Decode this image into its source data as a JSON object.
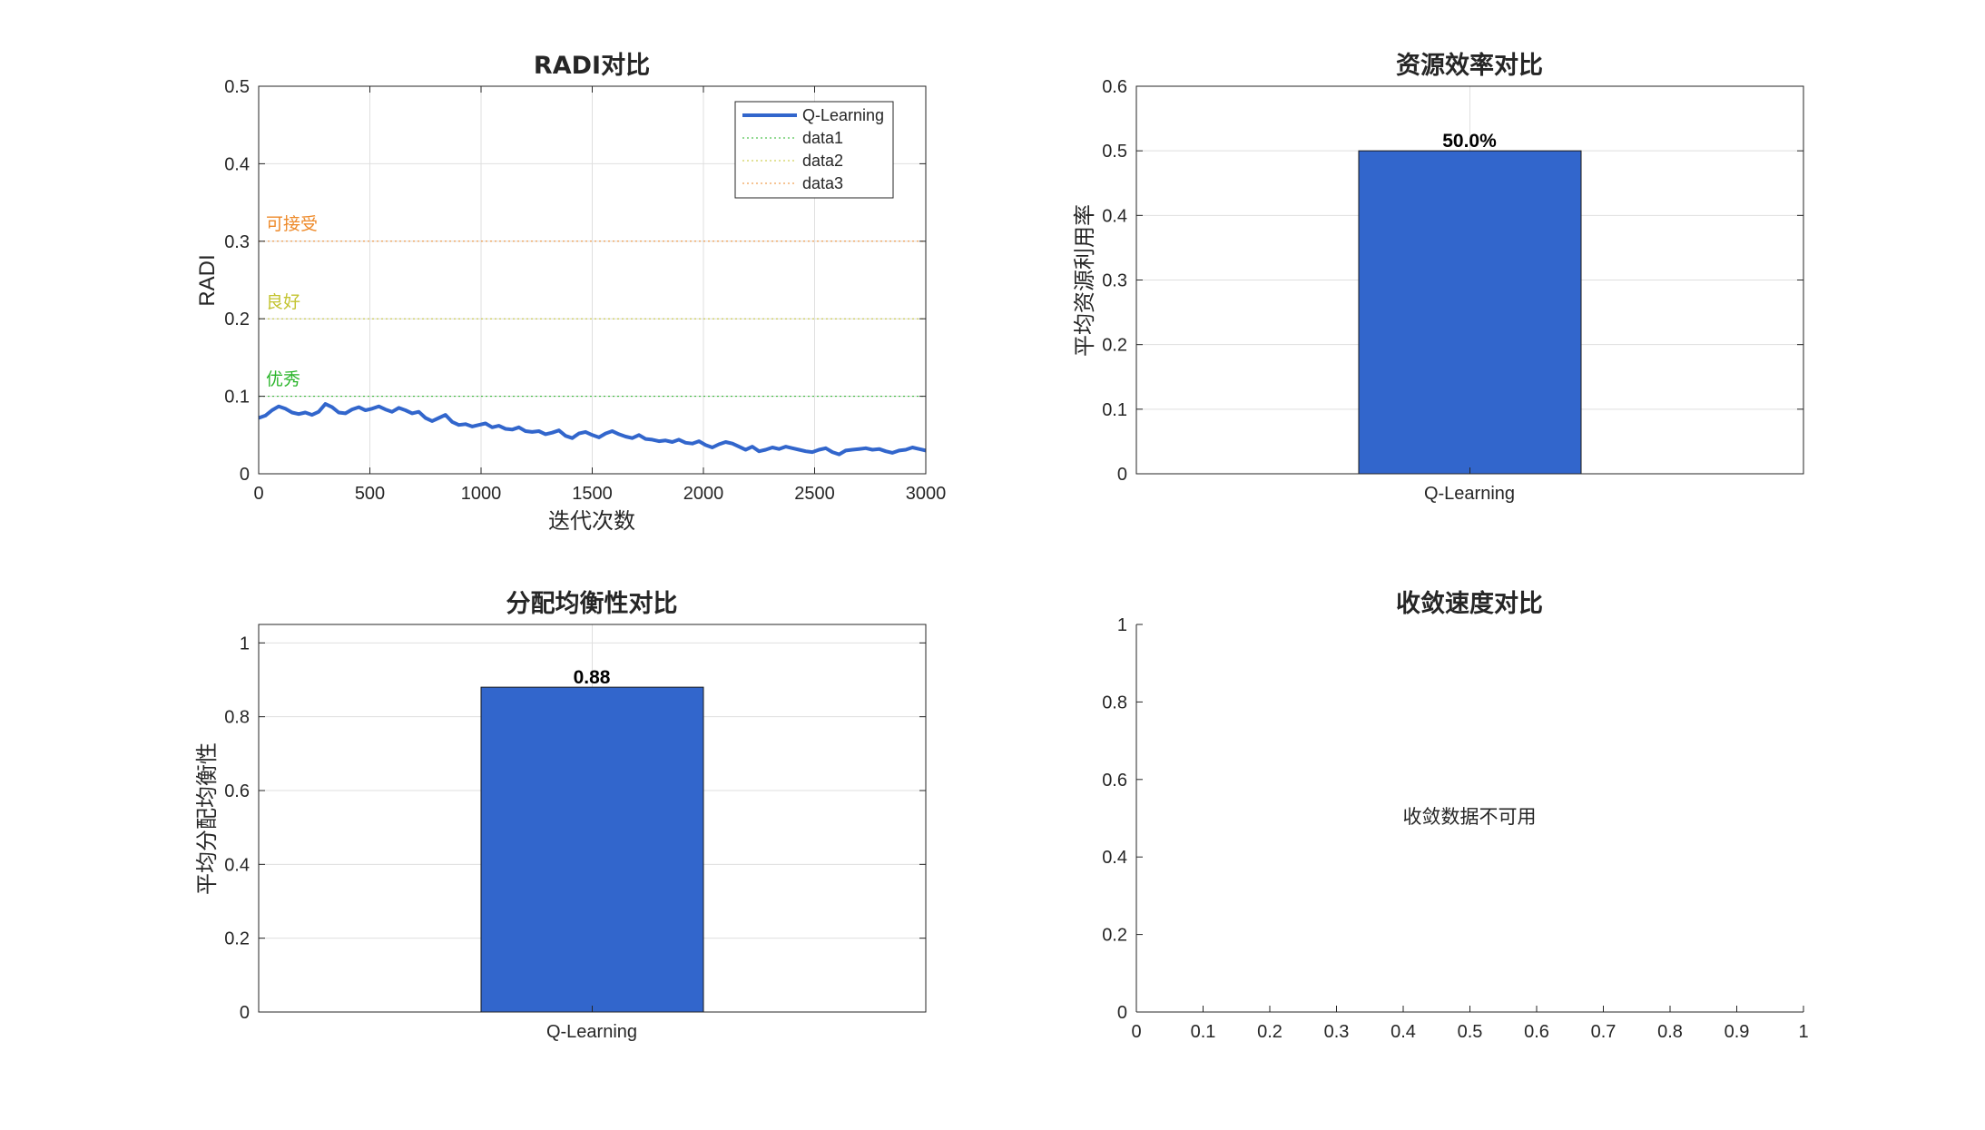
{
  "colors": {
    "qlearning": "#3266cc",
    "excellent": "#2ab52a",
    "good": "#c4c432",
    "acceptable": "#ee8a2a",
    "grid": "#dfdfdf",
    "axis": "#262626"
  },
  "chart_data": [
    {
      "type": "line",
      "title": "RADI对比",
      "xlabel": "迭代次数",
      "ylabel": "RADI",
      "xlim": [
        0,
        3000
      ],
      "ylim": [
        0,
        0.5
      ],
      "xticks": [
        "0",
        "500",
        "1000",
        "1500",
        "2000",
        "2500",
        "3000"
      ],
      "yticks": [
        "0",
        "0.1",
        "0.2",
        "0.3",
        "0.4",
        "0.5"
      ],
      "grid": true,
      "legend": {
        "placement": "top-right",
        "entries": [
          "Q-Learning",
          "data1",
          "data2",
          "data3"
        ]
      },
      "series": [
        {
          "name": "Q-Learning",
          "x": [
            0,
            30,
            60,
            90,
            120,
            150,
            180,
            210,
            240,
            270,
            300,
            330,
            360,
            390,
            420,
            450,
            480,
            510,
            540,
            570,
            600,
            630,
            660,
            690,
            720,
            750,
            780,
            810,
            840,
            870,
            900,
            930,
            960,
            990,
            1020,
            1050,
            1080,
            1110,
            1140,
            1170,
            1200,
            1230,
            1260,
            1290,
            1320,
            1350,
            1380,
            1410,
            1440,
            1470,
            1500,
            1530,
            1560,
            1590,
            1620,
            1650,
            1680,
            1710,
            1740,
            1770,
            1800,
            1830,
            1860,
            1890,
            1920,
            1950,
            1980,
            2010,
            2040,
            2070,
            2100,
            2130,
            2160,
            2190,
            2220,
            2250,
            2280,
            2310,
            2340,
            2370,
            2400,
            2430,
            2460,
            2490,
            2520,
            2550,
            2580,
            2610,
            2640,
            2670,
            2700,
            2730,
            2760,
            2790,
            2820,
            2850,
            2880,
            2910,
            2940,
            2970,
            3000
          ],
          "y": [
            0.072,
            0.075,
            0.082,
            0.087,
            0.084,
            0.079,
            0.077,
            0.079,
            0.076,
            0.08,
            0.09,
            0.086,
            0.079,
            0.078,
            0.083,
            0.086,
            0.082,
            0.084,
            0.087,
            0.083,
            0.08,
            0.085,
            0.082,
            0.078,
            0.08,
            0.072,
            0.068,
            0.072,
            0.076,
            0.067,
            0.063,
            0.064,
            0.061,
            0.063,
            0.065,
            0.06,
            0.062,
            0.058,
            0.057,
            0.06,
            0.055,
            0.054,
            0.055,
            0.051,
            0.053,
            0.056,
            0.049,
            0.046,
            0.052,
            0.054,
            0.05,
            0.047,
            0.052,
            0.055,
            0.051,
            0.048,
            0.046,
            0.05,
            0.045,
            0.044,
            0.042,
            0.043,
            0.041,
            0.044,
            0.04,
            0.039,
            0.042,
            0.037,
            0.034,
            0.038,
            0.041,
            0.039,
            0.035,
            0.031,
            0.035,
            0.029,
            0.031,
            0.034,
            0.032,
            0.035,
            0.033,
            0.031,
            0.029,
            0.028,
            0.031,
            0.033,
            0.028,
            0.025,
            0.03,
            0.031,
            0.032,
            0.033,
            0.031,
            0.032,
            0.029,
            0.027,
            0.03,
            0.031,
            0.034,
            0.032,
            0.03
          ]
        },
        {
          "name": "data1",
          "y_const": 0.1
        },
        {
          "name": "data2",
          "y_const": 0.2
        },
        {
          "name": "data3",
          "y_const": 0.3
        }
      ],
      "annotations": [
        "可接受",
        "良好",
        "优秀"
      ]
    },
    {
      "type": "bar",
      "title": "资源效率对比",
      "ylabel": "平均资源利用率",
      "categories": [
        "Q-Learning"
      ],
      "values": [
        0.5
      ],
      "data_labels": [
        "50.0%"
      ],
      "ylim": [
        0,
        0.6
      ],
      "yticks": [
        "0",
        "0.1",
        "0.2",
        "0.3",
        "0.4",
        "0.5",
        "0.6"
      ],
      "grid": true
    },
    {
      "type": "bar",
      "title": "分配均衡性对比",
      "ylabel": "平均分配均衡性",
      "categories": [
        "Q-Learning"
      ],
      "values": [
        0.88
      ],
      "data_labels": [
        "0.88"
      ],
      "ylim": [
        0,
        1.05
      ],
      "yticks": [
        "0",
        "0.2",
        "0.4",
        "0.6",
        "0.8",
        "1"
      ],
      "grid": true
    },
    {
      "type": "line",
      "title": "收敛速度对比",
      "xlim": [
        0,
        1
      ],
      "ylim": [
        0,
        1
      ],
      "xticks": [
        "0",
        "0.1",
        "0.2",
        "0.3",
        "0.4",
        "0.5",
        "0.6",
        "0.7",
        "0.8",
        "0.9",
        "1"
      ],
      "yticks": [
        "0",
        "0.2",
        "0.4",
        "0.6",
        "0.8",
        "1"
      ],
      "message": "收敛数据不可用",
      "grid": false
    }
  ]
}
